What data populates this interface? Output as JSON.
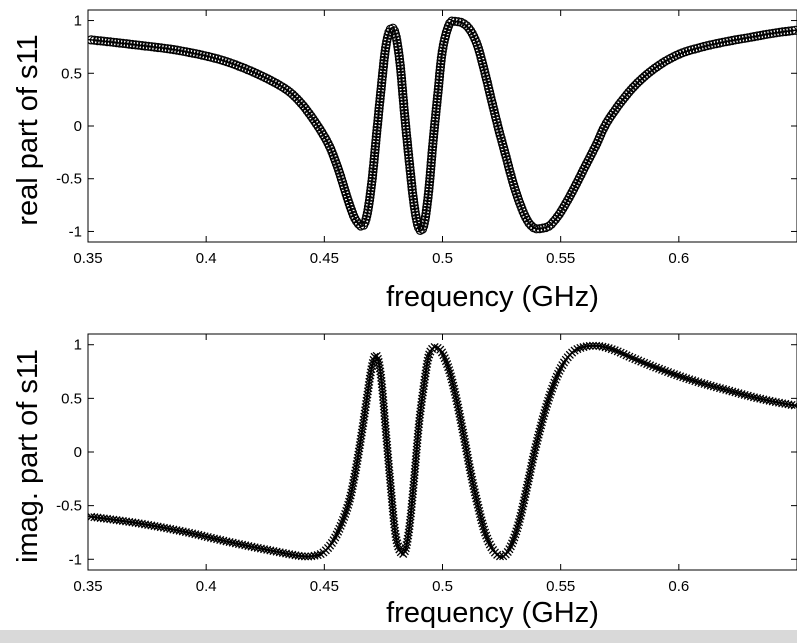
{
  "chart_data": [
    {
      "type": "line",
      "ylabel": "real part of s11",
      "xlabel": "frequency (GHz)",
      "xlim": [
        0.35,
        0.65
      ],
      "ylim": [
        -1.1,
        1.1
      ],
      "xticks": [
        "0.35",
        "0.4",
        "0.45",
        "0.5",
        "0.55",
        "0.6"
      ],
      "yticks": [
        "1",
        "0.5",
        "0",
        "-0.5",
        "-1"
      ],
      "marker": "o",
      "grid": false,
      "x": [
        0.35,
        0.37,
        0.39,
        0.41,
        0.43,
        0.44,
        0.45,
        0.455,
        0.46,
        0.463,
        0.466,
        0.468,
        0.47,
        0.472,
        0.474,
        0.476,
        0.478,
        0.48,
        0.482,
        0.484,
        0.486,
        0.488,
        0.49,
        0.492,
        0.494,
        0.496,
        0.498,
        0.5,
        0.503,
        0.506,
        0.509,
        0.512,
        0.515,
        0.518,
        0.521,
        0.524,
        0.527,
        0.53,
        0.533,
        0.536,
        0.539,
        0.542,
        0.545,
        0.548,
        0.551,
        0.555,
        0.56,
        0.565,
        0.57,
        0.58,
        0.59,
        0.6,
        0.61,
        0.62,
        0.63,
        0.64,
        0.65
      ],
      "y": [
        0.82,
        0.77,
        0.71,
        0.6,
        0.4,
        0.22,
        -0.1,
        -0.35,
        -0.7,
        -0.88,
        -0.95,
        -0.85,
        -0.55,
        -0.1,
        0.35,
        0.75,
        0.92,
        0.88,
        0.6,
        0.1,
        -0.35,
        -0.75,
        -0.97,
        -0.95,
        -0.65,
        -0.15,
        0.3,
        0.72,
        0.97,
        0.99,
        0.97,
        0.9,
        0.75,
        0.5,
        0.22,
        -0.05,
        -0.3,
        -0.55,
        -0.75,
        -0.9,
        -0.97,
        -0.97,
        -0.95,
        -0.88,
        -0.78,
        -0.62,
        -0.4,
        -0.18,
        0.05,
        0.35,
        0.55,
        0.68,
        0.75,
        0.8,
        0.84,
        0.88,
        0.91
      ]
    },
    {
      "type": "line",
      "ylabel": "imag. part of s11",
      "xlabel": "frequency (GHz)",
      "xlim": [
        0.35,
        0.65
      ],
      "ylim": [
        -1.1,
        1.1
      ],
      "xticks": [
        "0.35",
        "0.4",
        "0.45",
        "0.5",
        "0.55",
        "0.6"
      ],
      "yticks": [
        "1",
        "0.5",
        "0",
        "-0.5",
        "-1"
      ],
      "marker": "x",
      "grid": false,
      "x": [
        0.35,
        0.37,
        0.39,
        0.41,
        0.43,
        0.44,
        0.445,
        0.45,
        0.455,
        0.46,
        0.463,
        0.466,
        0.468,
        0.47,
        0.472,
        0.474,
        0.476,
        0.478,
        0.48,
        0.482,
        0.484,
        0.486,
        0.488,
        0.49,
        0.492,
        0.494,
        0.496,
        0.498,
        0.5,
        0.503,
        0.506,
        0.509,
        0.512,
        0.515,
        0.518,
        0.521,
        0.524,
        0.527,
        0.53,
        0.533,
        0.536,
        0.54,
        0.545,
        0.55,
        0.555,
        0.56,
        0.565,
        0.57,
        0.575,
        0.58,
        0.59,
        0.6,
        0.61,
        0.62,
        0.63,
        0.64,
        0.65
      ],
      "y": [
        -0.6,
        -0.66,
        -0.74,
        -0.84,
        -0.93,
        -0.97,
        -0.97,
        -0.93,
        -0.78,
        -0.5,
        -0.2,
        0.2,
        0.5,
        0.78,
        0.9,
        0.7,
        0.2,
        -0.3,
        -0.75,
        -0.92,
        -0.93,
        -0.7,
        -0.25,
        0.25,
        0.6,
        0.88,
        0.97,
        0.97,
        0.92,
        0.75,
        0.48,
        0.15,
        -0.2,
        -0.5,
        -0.75,
        -0.9,
        -0.97,
        -0.95,
        -0.82,
        -0.6,
        -0.3,
        0.1,
        0.5,
        0.78,
        0.93,
        0.98,
        0.99,
        0.97,
        0.93,
        0.88,
        0.79,
        0.71,
        0.64,
        0.58,
        0.52,
        0.47,
        0.43
      ]
    }
  ]
}
